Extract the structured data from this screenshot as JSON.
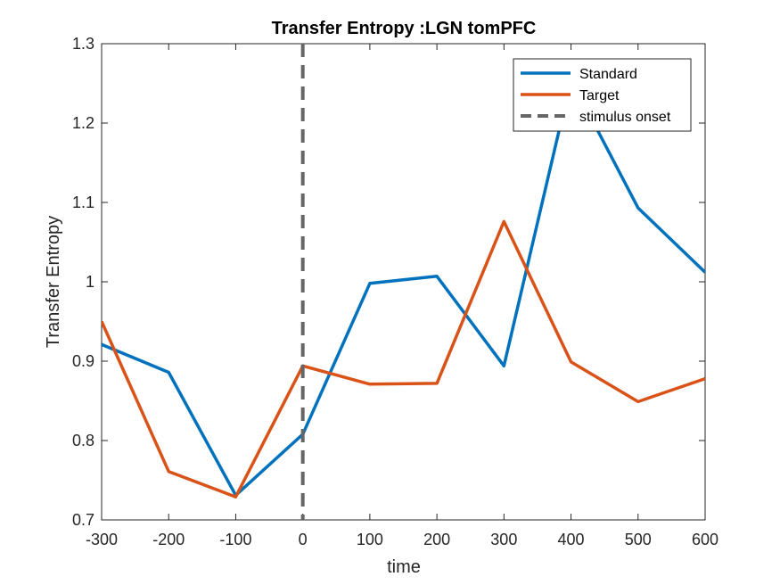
{
  "chart_data": {
    "type": "line",
    "title": "Transfer Entropy :LGN tomPFC",
    "xlabel": "time",
    "ylabel": "Transfer Entropy",
    "xlim": [
      -300,
      600
    ],
    "ylim": [
      0.7,
      1.3
    ],
    "xticks": [
      -300,
      -200,
      -100,
      0,
      100,
      200,
      300,
      400,
      500,
      600
    ],
    "xtick_labels": [
      "-300",
      "-200",
      "-100",
      "0",
      "100",
      "200",
      "300",
      "400",
      "500",
      "600"
    ],
    "yticks": [
      0.7,
      0.8,
      0.9,
      1.0,
      1.1,
      1.2,
      1.3
    ],
    "ytick_labels": [
      "0.7",
      "0.8",
      "0.9",
      "1",
      "1.1",
      "1.2",
      "1.3"
    ],
    "x": [
      -300,
      -200,
      -100,
      0,
      100,
      200,
      300,
      400,
      500,
      600
    ],
    "series": [
      {
        "name": "Standard",
        "color": "#0072BD",
        "values": [
          0.921,
          0.886,
          0.731,
          0.808,
          0.998,
          1.007,
          0.894,
          1.255,
          1.093,
          1.012
        ]
      },
      {
        "name": "Target",
        "color": "#D95319",
        "values": [
          0.95,
          0.761,
          0.729,
          0.894,
          0.871,
          0.872,
          1.076,
          0.899,
          0.849,
          0.878
        ]
      }
    ],
    "vline": {
      "name": "stimulus onset",
      "x": 0,
      "color": "#666666",
      "style": "dashed"
    },
    "grid": false,
    "legend": {
      "position": "top-right",
      "entries": [
        "Standard",
        "Target",
        "stimulus onset"
      ]
    }
  }
}
